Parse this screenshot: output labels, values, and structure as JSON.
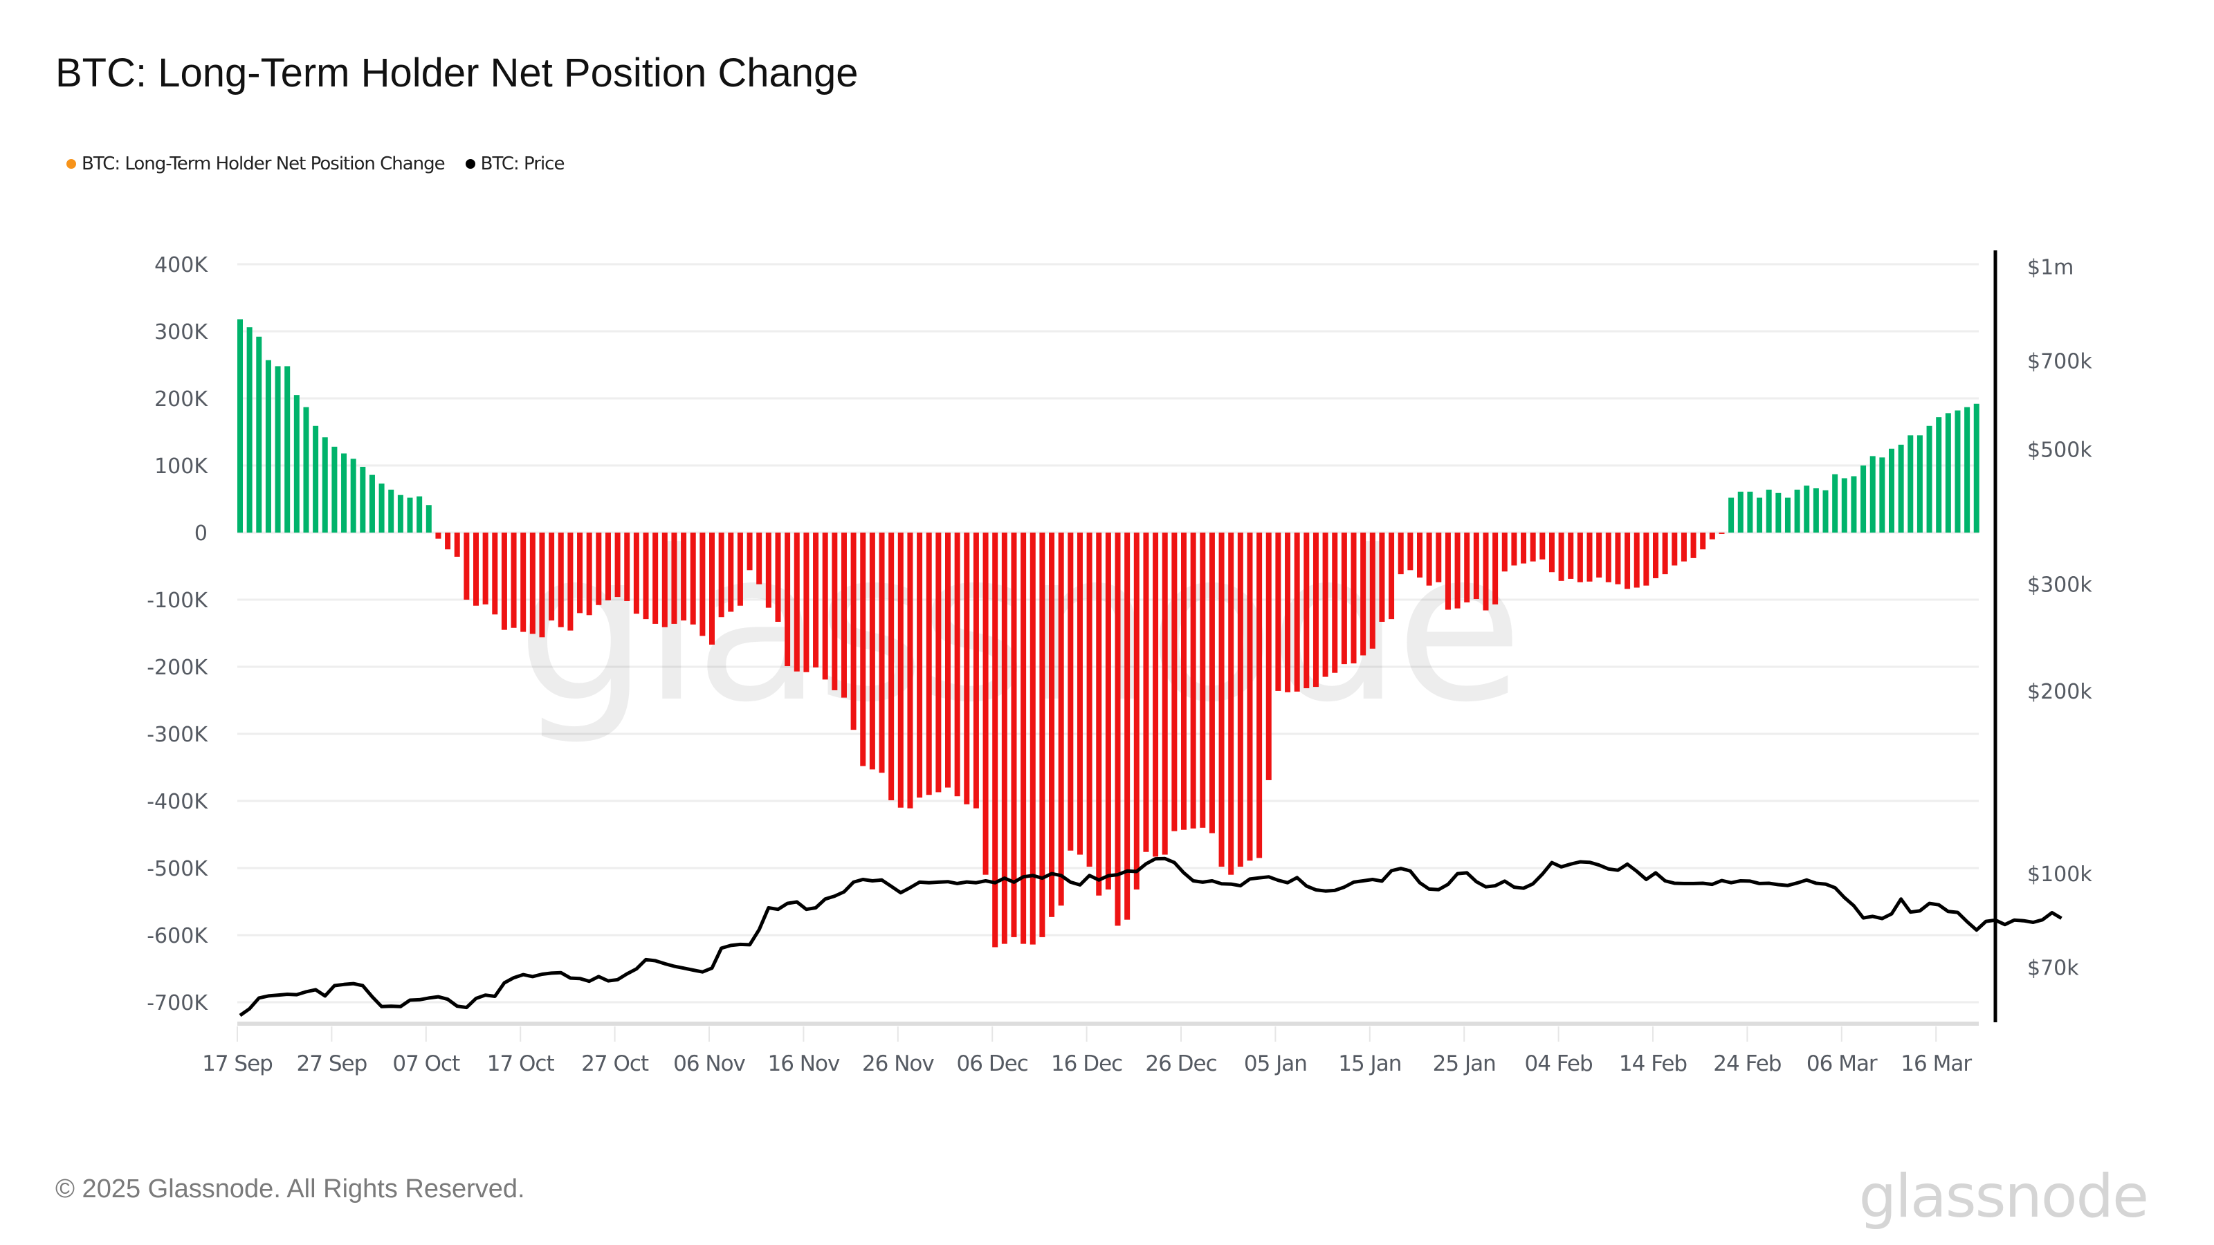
{
  "header": {
    "title": "BTC: Long-Term Holder Net Position Change"
  },
  "legend": [
    {
      "label": "BTC: Long-Term Holder Net Position Change",
      "color": "#f7931a"
    },
    {
      "label": "BTC: Price",
      "color": "#000000"
    }
  ],
  "footer": {
    "copyright": "© 2025 Glassnode. All Rights Reserved.",
    "brand": "glassnode"
  },
  "watermark": "glassnode",
  "colors": {
    "positive": "#00b36b",
    "negative": "#ee1313",
    "price": "#000000",
    "grid": "#eeeeee"
  },
  "chart_data": {
    "type": "bar",
    "title": "BTC: Long-Term Holder Net Position Change",
    "xlabel": "",
    "ylabel": "",
    "start_date": "17 Sep",
    "x_tick_labels": [
      "17 Sep",
      "27 Sep",
      "07 Oct",
      "17 Oct",
      "27 Oct",
      "06 Nov",
      "16 Nov",
      "26 Nov",
      "06 Dec",
      "16 Dec",
      "26 Dec",
      "05 Jan",
      "15 Jan",
      "25 Jan",
      "04 Feb",
      "14 Feb",
      "24 Feb",
      "06 Mar",
      "16 Mar"
    ],
    "y_left": {
      "ticks": [
        400000,
        300000,
        200000,
        100000,
        0,
        -100000,
        -200000,
        -300000,
        -400000,
        -500000,
        -600000,
        -700000
      ],
      "tick_labels": [
        "400K",
        "300K",
        "200K",
        "100K",
        "0",
        "-100K",
        "-200K",
        "-300K",
        "-400K",
        "-500K",
        "-600K",
        "-700K"
      ],
      "ylim": [
        -730000,
        420000
      ]
    },
    "y_right": {
      "scale": "log",
      "ticks": [
        1000000,
        700000,
        500000,
        300000,
        200000,
        100000,
        70000
      ],
      "tick_labels": [
        "$1m",
        "$700k",
        "$500k",
        "$300k",
        "$200k",
        "$100k",
        "$70k"
      ],
      "ylim": [
        57000,
        1050000
      ]
    },
    "grid": true,
    "legend_position": "top-left",
    "series": [
      {
        "name": "BTC: Long-Term Holder Net Position Change",
        "type": "bar",
        "axis": "left",
        "values": [
          318000,
          306000,
          292000,
          257000,
          248000,
          248000,
          205000,
          187000,
          159000,
          142000,
          128000,
          118000,
          110000,
          98000,
          86000,
          73000,
          64000,
          56000,
          52000,
          54000,
          41000,
          -9000,
          -25000,
          -36000,
          -100000,
          -109000,
          -107000,
          -122000,
          -145000,
          -142000,
          -148000,
          -151000,
          -156000,
          -131000,
          -141000,
          -146000,
          -120000,
          -123000,
          -108000,
          -101000,
          -96000,
          -102000,
          -121000,
          -129000,
          -136000,
          -141000,
          -136000,
          -131000,
          -137000,
          -154000,
          -167000,
          -126000,
          -118000,
          -109000,
          -56000,
          -77000,
          -112000,
          -133000,
          -199000,
          -207000,
          -208000,
          -201000,
          -219000,
          -235000,
          -246000,
          -294000,
          -348000,
          -353000,
          -358000,
          -399000,
          -410000,
          -411000,
          -395000,
          -391000,
          -387000,
          -380000,
          -393000,
          -405000,
          -411000,
          -510000,
          -618000,
          -613000,
          -603000,
          -613000,
          -614000,
          -603000,
          -573000,
          -556000,
          -474000,
          -480000,
          -498000,
          -541000,
          -532000,
          -586000,
          -577000,
          -532000,
          -476000,
          -483000,
          -480000,
          -445000,
          -443000,
          -441000,
          -440000,
          -448000,
          -498000,
          -510000,
          -498000,
          -489000,
          -485000,
          -369000,
          -236000,
          -238000,
          -237000,
          -232000,
          -230000,
          -215000,
          -209000,
          -196000,
          -195000,
          -183000,
          -173000,
          -133000,
          -129000,
          -62000,
          -56000,
          -67000,
          -79000,
          -74000,
          -115000,
          -113000,
          -104000,
          -99000,
          -116000,
          -107000,
          -58000,
          -49000,
          -46000,
          -43000,
          -40000,
          -59000,
          -72000,
          -69000,
          -74000,
          -73000,
          -67000,
          -74000,
          -77000,
          -84000,
          -82000,
          -79000,
          -68000,
          -62000,
          -49000,
          -43000,
          -38000,
          -25000,
          -10000,
          -2000,
          52000,
          61000,
          61000,
          52000,
          64000,
          59000,
          52000,
          64000,
          70000,
          66000,
          63000,
          87000,
          81000,
          84000,
          100000,
          114000,
          112000,
          125000,
          131000,
          145000,
          145000,
          159000,
          172000,
          178000,
          182000,
          187000,
          192000
        ]
      },
      {
        "name": "BTC: Price",
        "type": "line",
        "axis": "right",
        "values": [
          58500,
          60000,
          62500,
          63000,
          63200,
          63400,
          63300,
          64000,
          64500,
          63000,
          65500,
          65800,
          66000,
          65500,
          62800,
          60500,
          60600,
          60500,
          62000,
          62100,
          62500,
          62800,
          62200,
          60600,
          60300,
          62400,
          63200,
          62900,
          66200,
          67500,
          68300,
          67800,
          68400,
          68700,
          68800,
          67400,
          67300,
          66600,
          67800,
          66700,
          67000,
          68500,
          69800,
          72300,
          72000,
          71200,
          70500,
          70000,
          69500,
          69000,
          70000,
          75500,
          76300,
          76600,
          76500,
          81000,
          88000,
          87500,
          89500,
          90000,
          87500,
          88000,
          91000,
          92000,
          93500,
          97000,
          98000,
          97500,
          97800,
          95500,
          93200,
          95000,
          97000,
          96800,
          97000,
          97200,
          96500,
          97100,
          96800,
          97500,
          96800,
          98500,
          97000,
          99000,
          99500,
          98500,
          100200,
          99500,
          97000,
          96000,
          99500,
          97800,
          99400,
          99800,
          101200,
          101000,
          104000,
          106000,
          106100,
          104500,
          100500,
          97500,
          97000,
          97500,
          96400,
          96300,
          95700,
          98200,
          98600,
          99000,
          97700,
          96800,
          98700,
          95600,
          94200,
          93800,
          94000,
          95200,
          97000,
          97500,
          98000,
          97400,
          101300,
          102200,
          101200,
          96800,
          94500,
          94300,
          96200,
          100200,
          100500,
          97200,
          95300,
          95700,
          97400,
          95200,
          94800,
          96400,
          100000,
          104500,
          102800,
          103900,
          104800,
          104600,
          103500,
          102000,
          101500,
          103900,
          101100,
          98000,
          100500,
          97500,
          96600,
          96500,
          96500,
          96600,
          96200,
          97600,
          96800,
          97500,
          97400,
          96500,
          96600,
          96100,
          95800,
          96700,
          97800,
          96600,
          96300,
          95000,
          91500,
          88700,
          84700,
          85200,
          84500,
          86000,
          91000,
          86600,
          87000,
          89500,
          89000,
          86800,
          86500,
          83500,
          80900,
          83600,
          84000,
          82600,
          84000,
          83800,
          83300,
          84100,
          86400,
          84600
        ]
      }
    ]
  }
}
